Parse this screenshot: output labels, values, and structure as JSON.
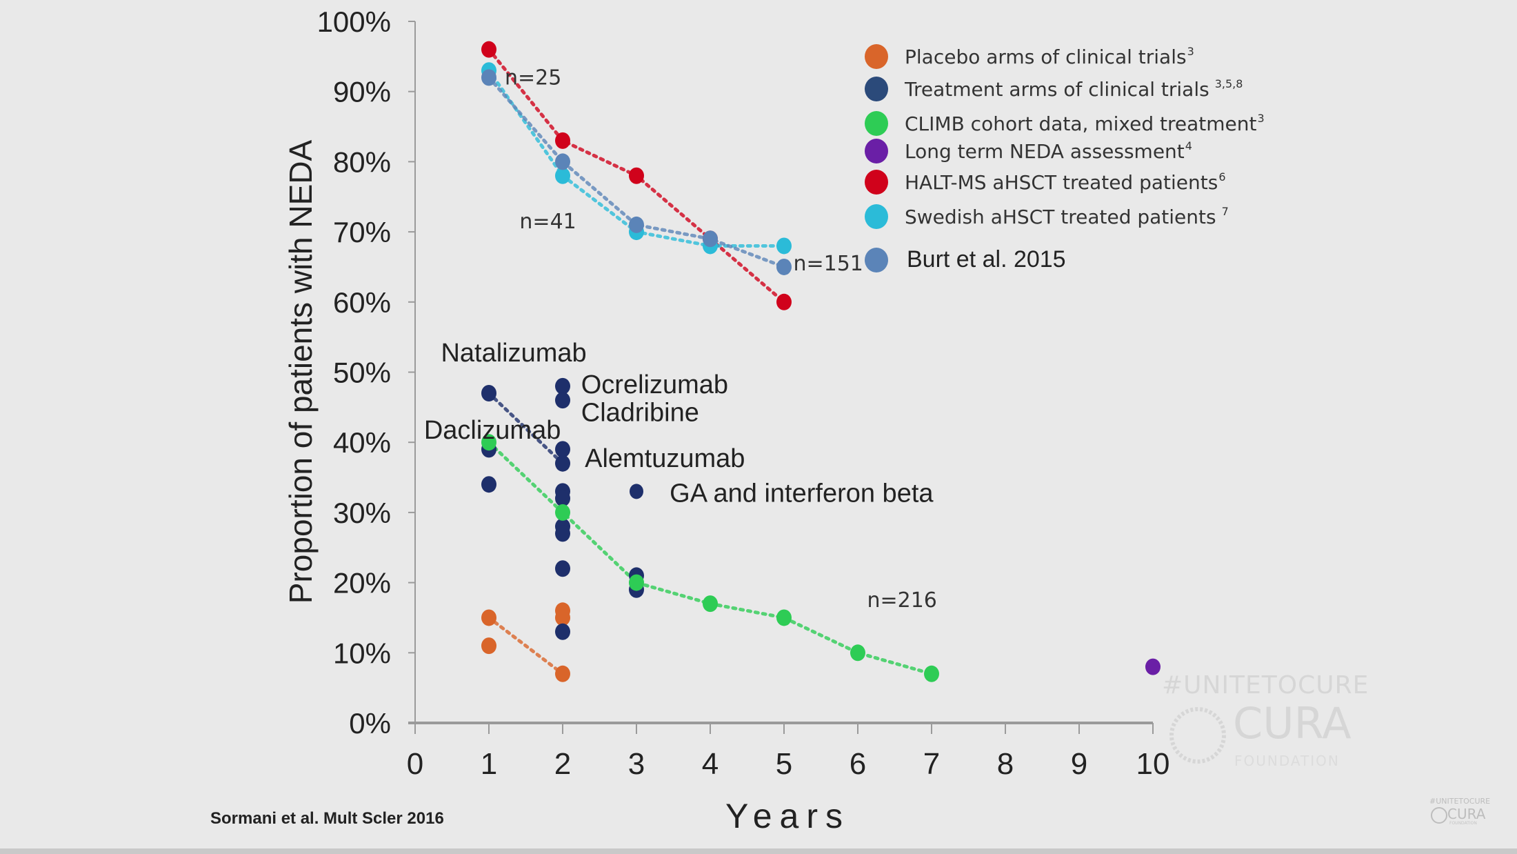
{
  "chart_data": {
    "type": "scatter",
    "title": "",
    "xlabel": "Years",
    "ylabel": "Proportion of patients with NEDA",
    "xlim": [
      0,
      10
    ],
    "ylim": [
      0,
      100
    ],
    "x_ticks": [
      "0",
      "1",
      "2",
      "3",
      "4",
      "5",
      "6",
      "7",
      "8",
      "9",
      "10"
    ],
    "y_ticks": [
      "0%",
      "10%",
      "20%",
      "30%",
      "40%",
      "50%",
      "60%",
      "70%",
      "80%",
      "90%",
      "100%"
    ],
    "grid": false,
    "legend_position": "top-right",
    "series": [
      {
        "name": "Placebo arms of clinical trials",
        "superscript": "3",
        "color": "#d9652a",
        "connected": true,
        "points": [
          {
            "x": 1,
            "y": 15,
            "line": true
          },
          {
            "x": 1,
            "y": 11
          },
          {
            "x": 2,
            "y": 16
          },
          {
            "x": 2,
            "y": 15
          },
          {
            "x": 2,
            "y": 7,
            "line": true
          }
        ]
      },
      {
        "name": "Treatment arms of clinical trials",
        "superscript": "3,5,8",
        "color": "#1e2f6b",
        "legend_color": "#2b4a7a",
        "connected": true,
        "points": [
          {
            "x": 1,
            "y": 47,
            "line": true
          },
          {
            "x": 1,
            "y": 39
          },
          {
            "x": 1,
            "y": 34
          },
          {
            "x": 2,
            "y": 48
          },
          {
            "x": 2,
            "y": 46
          },
          {
            "x": 2,
            "y": 39
          },
          {
            "x": 2,
            "y": 37,
            "line": true
          },
          {
            "x": 2,
            "y": 33
          },
          {
            "x": 2,
            "y": 32
          },
          {
            "x": 2,
            "y": 28
          },
          {
            "x": 2,
            "y": 27
          },
          {
            "x": 2,
            "y": 22
          },
          {
            "x": 2,
            "y": 13
          },
          {
            "x": 3,
            "y": 21
          },
          {
            "x": 3,
            "y": 19
          }
        ]
      },
      {
        "name": "CLIMB cohort data, mixed treatment",
        "superscript": "3",
        "color": "#2ecc55",
        "connected": true,
        "points": [
          {
            "x": 1,
            "y": 40,
            "line": true
          },
          {
            "x": 2,
            "y": 30,
            "line": true
          },
          {
            "x": 3,
            "y": 20,
            "line": true
          },
          {
            "x": 4,
            "y": 17,
            "line": true
          },
          {
            "x": 5,
            "y": 15,
            "line": true
          },
          {
            "x": 6,
            "y": 10,
            "line": true
          },
          {
            "x": 7,
            "y": 7,
            "line": true
          }
        ]
      },
      {
        "name": "Long term NEDA assessment",
        "superscript": "4",
        "color": "#6a1fa6",
        "connected": false,
        "points": [
          {
            "x": 10,
            "y": 8
          }
        ]
      },
      {
        "name": "HALT-MS aHSCT treated patients",
        "superscript": "6",
        "color": "#d0021b",
        "connected": true,
        "points": [
          {
            "x": 1,
            "y": 96,
            "line": true
          },
          {
            "x": 2,
            "y": 83,
            "line": true
          },
          {
            "x": 3,
            "y": 78,
            "line": true
          },
          {
            "x": 4,
            "y": 69,
            "line": true
          },
          {
            "x": 5,
            "y": 60,
            "line": true
          }
        ]
      },
      {
        "name": "Swedish aHSCT treated patients",
        "superscript": "7",
        "color": "#2bbbd8",
        "connected": true,
        "points": [
          {
            "x": 1,
            "y": 93,
            "line": true
          },
          {
            "x": 2,
            "y": 78,
            "line": true
          },
          {
            "x": 3,
            "y": 70,
            "line": true
          },
          {
            "x": 4,
            "y": 68,
            "line": true
          },
          {
            "x": 5,
            "y": 68,
            "line": true
          }
        ]
      },
      {
        "name": "Burt et al. 2015",
        "superscript": "",
        "color": "#5b84b8",
        "connected": true,
        "points": [
          {
            "x": 1,
            "y": 92,
            "line": true
          },
          {
            "x": 2,
            "y": 80,
            "line": true
          },
          {
            "x": 3,
            "y": 71,
            "line": true
          },
          {
            "x": 4,
            "y": 69,
            "line": true
          },
          {
            "x": 5,
            "y": 65,
            "line": true
          }
        ]
      }
    ],
    "annotations": {
      "sample_sizes": [
        {
          "text": "n=25",
          "x": 1.6,
          "y": 91
        },
        {
          "text": "n=41",
          "x": 1.8,
          "y": 70.5
        },
        {
          "text": "n=151",
          "x": 5.6,
          "y": 64.5
        },
        {
          "text": "n=216",
          "x": 6.6,
          "y": 16.5
        }
      ],
      "drug_labels": [
        {
          "text": "Natalizumab",
          "x": 0.35,
          "y": 51.5
        },
        {
          "text": "Ocrelizumab",
          "x": 2.25,
          "y": 47
        },
        {
          "text": "Cladribine",
          "x": 2.25,
          "y": 43
        },
        {
          "text": "Daclizumab",
          "x": 0.12,
          "y": 40.5
        },
        {
          "text": "Alemtuzumab",
          "x": 2.3,
          "y": 36.5
        },
        {
          "text": "GA and interferon beta",
          "x": 3.45,
          "y": 31.5
        }
      ],
      "drug_marker": {
        "x": 3,
        "y": 33,
        "color": "#1e2f6b"
      }
    }
  },
  "citation": "Sormani et al. Mult Scler 2016",
  "watermark": {
    "hashtag": "#UNITETOCURE",
    "name": "CURA",
    "subtitle": "FOUNDATION"
  }
}
